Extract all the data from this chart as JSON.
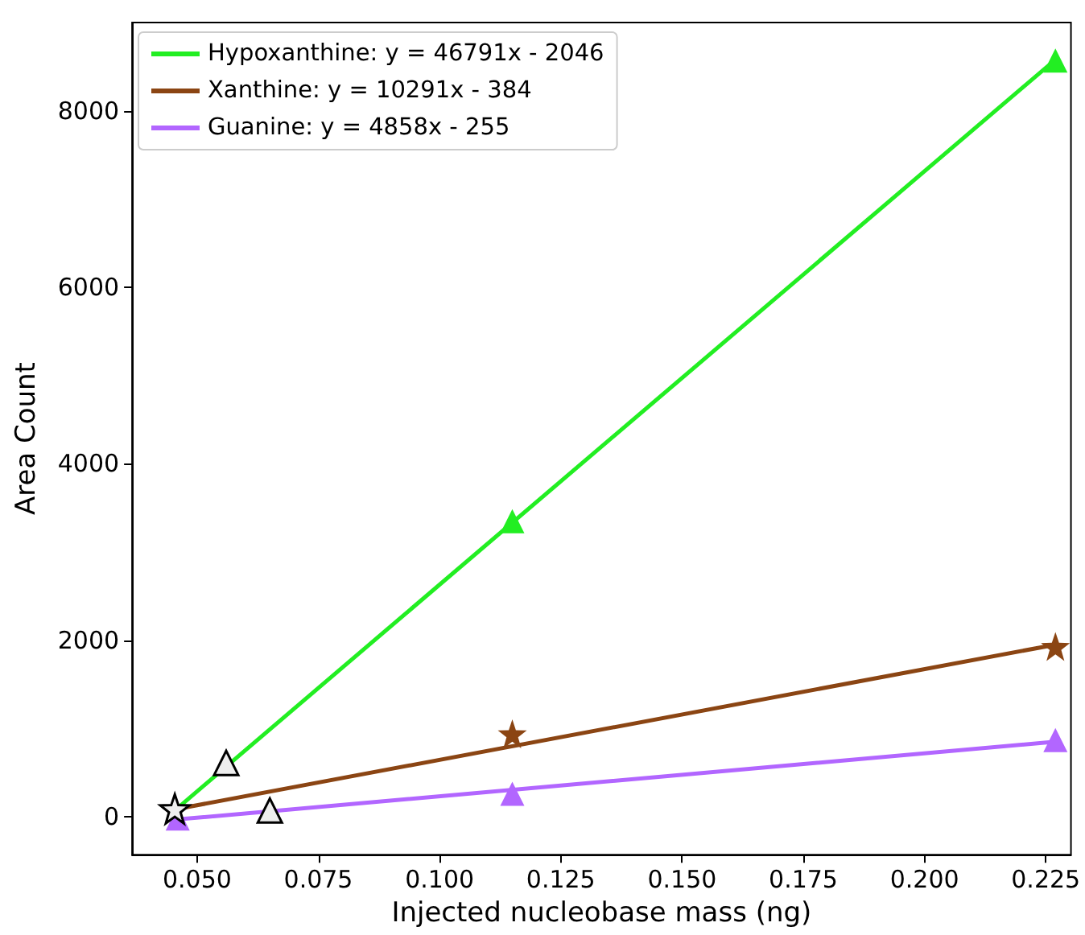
{
  "chart_data": {
    "type": "scatter",
    "xlabel": "Injected nucleobase mass (ng)",
    "ylabel": "Area Count",
    "xlim": [
      0.0366,
      0.2302
    ],
    "ylim": [
      -430,
      9000
    ],
    "xticks": [
      {
        "value": 0.05,
        "label": "0.050"
      },
      {
        "value": 0.075,
        "label": "0.075"
      },
      {
        "value": 0.1,
        "label": "0.100"
      },
      {
        "value": 0.125,
        "label": "0.125"
      },
      {
        "value": 0.15,
        "label": "0.150"
      },
      {
        "value": 0.175,
        "label": "0.175"
      },
      {
        "value": 0.2,
        "label": "0.200"
      },
      {
        "value": 0.225,
        "label": "0.225"
      }
    ],
    "yticks": [
      0,
      2000,
      4000,
      6000,
      8000
    ],
    "grid": false,
    "legend": "top left",
    "series": [
      {
        "type": "line",
        "name": "Hypoxanthine: y = 46791x - 2046",
        "color": "#22ee22",
        "marker": "none",
        "x": [
          0.046,
          0.227
        ],
        "values": [
          100,
          8580
        ]
      },
      {
        "type": "line",
        "name": "Xanthine: y = 10291x - 384",
        "color": "#8b4513",
        "marker": "none",
        "x": [
          0.046,
          0.227
        ],
        "values": [
          90,
          1950
        ]
      },
      {
        "type": "line",
        "name": "Guanine: y = 4858x - 255",
        "color": "#b266ff",
        "marker": "none",
        "x": [
          0.046,
          0.227
        ],
        "values": [
          -30,
          850
        ]
      },
      {
        "color": "#22ee22",
        "marker": "triangle",
        "x": [
          0.115,
          0.227
        ],
        "values": [
          3350,
          8570
        ]
      },
      {
        "color": "#8b4513",
        "marker": "star",
        "x": [
          0.115,
          0.227
        ],
        "values": [
          940,
          1930
        ]
      },
      {
        "color": "#b266ff",
        "marker": "triangle",
        "x": [
          0.046,
          0.115,
          0.227
        ],
        "values": [
          -20,
          260,
          870
        ]
      },
      {
        "color": "#eeeeee",
        "marker": "triangle",
        "x": [
          0.056
        ],
        "values": [
          610
        ]
      },
      {
        "color": "#eeeeee",
        "marker": "star",
        "x": [
          0.0454
        ],
        "values": [
          90
        ]
      },
      {
        "color": "#eeeeee",
        "marker": "triangle",
        "x": [
          0.065
        ],
        "values": [
          70
        ]
      }
    ]
  }
}
